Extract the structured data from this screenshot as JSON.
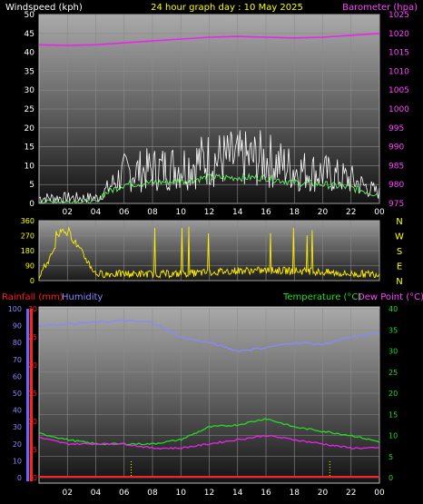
{
  "header": {
    "left": "Windspeed (kph)",
    "center": "24 hour graph day : 10 May 2025",
    "right": "Barometer (hpa)"
  },
  "hour_ticks": [
    "02",
    "04",
    "06",
    "08",
    "10",
    "12",
    "14",
    "16",
    "18",
    "20",
    "22",
    "00"
  ],
  "wind_panel": {
    "left_ticks": [
      "0",
      "5",
      "10",
      "15",
      "20",
      "25",
      "30",
      "35",
      "40",
      "45",
      "50"
    ],
    "right_ticks": [
      "975",
      "980",
      "985",
      "990",
      "995",
      "1000",
      "1005",
      "1010",
      "1015",
      "1020",
      "1025"
    ]
  },
  "dir_panel": {
    "ticks": [
      "0",
      "90",
      "180",
      "270",
      "360"
    ],
    "compass": [
      "N",
      "W",
      "S",
      "E",
      "N"
    ]
  },
  "bottom_panel": {
    "rain_label": "Rainfall (mm)",
    "hum_label": "Humidity",
    "temp_label": "Temperature (°C)",
    "dew_label": "Dew Point (°C)",
    "rain_ticks": [
      "0",
      "5",
      "10",
      "15",
      "20",
      "25",
      "30"
    ],
    "hum_ticks": [
      "0",
      "10",
      "20",
      "30",
      "40",
      "50",
      "60",
      "70",
      "80",
      "90",
      "100"
    ],
    "temp_ticks": [
      "0",
      "5",
      "10",
      "15",
      "20",
      "25",
      "30",
      "35",
      "40"
    ]
  },
  "colors": {
    "wind_gust": "#ffffff",
    "wind_avg": "#66ee66",
    "barometer": "#ee22ee",
    "direction": "#ffee00",
    "rainfall": "#ff2020",
    "humidity": "#8888ff",
    "temperature": "#22dd22",
    "dew_point": "#ee22ee",
    "header_yellow": "#ffff00",
    "header_magenta": "#ff44ff"
  },
  "chart_data": [
    {
      "type": "line",
      "x": [
        0,
        2,
        4,
        6,
        8,
        10,
        12,
        14,
        16,
        18,
        20,
        22,
        24
      ],
      "xlabel": "",
      "series": [
        {
          "name": "Windspeed (kph)",
          "values": [
            1,
            2,
            1,
            9,
            10,
            11,
            13,
            13,
            13,
            10,
            9,
            7,
            3
          ]
        },
        {
          "name": "Barometer (hpa)",
          "values": [
            1017,
            1016.8,
            1017,
            1017.5,
            1018,
            1018.5,
            1019,
            1019.2,
            1019,
            1018.8,
            1019,
            1019.5,
            1020
          ]
        }
      ],
      "ylim_left": [
        0,
        50
      ],
      "ylim_right": [
        975,
        1025
      ]
    },
    {
      "type": "line",
      "x": [
        0,
        2,
        4,
        6,
        8,
        10,
        12,
        14,
        16,
        18,
        20,
        22,
        24
      ],
      "series": [
        {
          "name": "Direction",
          "values": [
            30,
            300,
            40,
            40,
            40,
            40,
            50,
            60,
            60,
            60,
            50,
            40,
            40
          ]
        }
      ],
      "ylim": [
        0,
        360
      ]
    },
    {
      "type": "line",
      "x": [
        0,
        2,
        4,
        6,
        8,
        10,
        12,
        14,
        16,
        18,
        20,
        22,
        24
      ],
      "series": [
        {
          "name": "Humidity",
          "values": [
            90,
            91,
            92,
            93,
            92,
            83,
            80,
            75,
            77,
            80,
            79,
            83,
            86
          ]
        },
        {
          "name": "Temperature (°C)",
          "values": [
            10.5,
            9,
            8,
            8,
            8,
            9,
            12,
            12.5,
            14,
            12,
            11,
            10,
            8.5
          ]
        },
        {
          "name": "Dew Point (°C)",
          "values": [
            9.5,
            8,
            8,
            8,
            7,
            7,
            8,
            9,
            10,
            9,
            8,
            7,
            7
          ]
        },
        {
          "name": "Rainfall (mm)",
          "values": [
            0,
            0,
            0,
            0,
            0,
            0,
            0,
            0,
            0,
            0,
            0,
            0,
            0
          ]
        }
      ],
      "ylim_humidity": [
        0,
        100
      ],
      "ylim_temp": [
        0,
        40
      ],
      "ylim_rain": [
        0,
        30
      ]
    }
  ]
}
